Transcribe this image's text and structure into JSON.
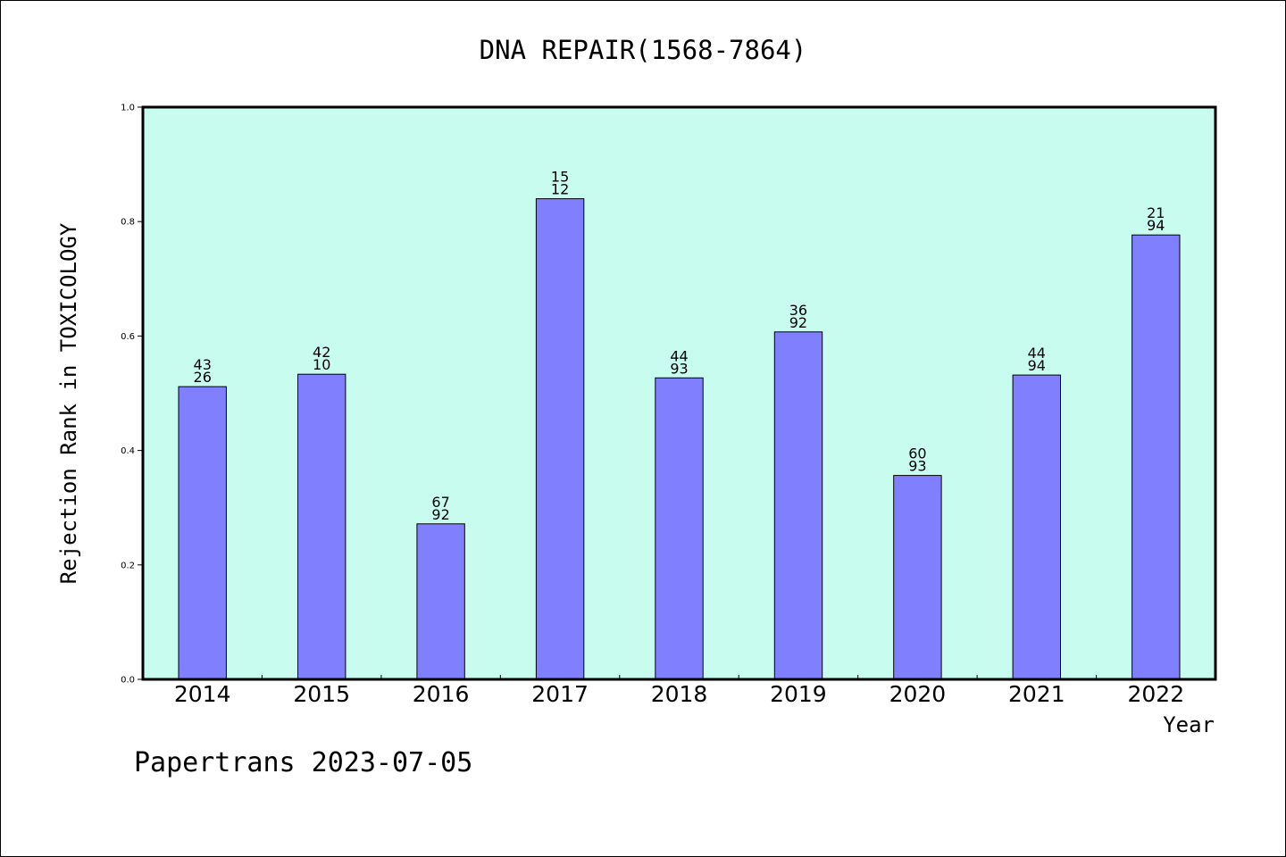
{
  "chart_data": {
    "type": "bar",
    "title": "DNA REPAIR(1568-7864)",
    "xlabel": "Year",
    "ylabel": "Rejection Rank in TOXICOLOGY",
    "categories": [
      "2014",
      "2015",
      "2016",
      "2017",
      "2018",
      "2019",
      "2020",
      "2021",
      "2022"
    ],
    "values": [
      0.5116,
      0.5333,
      0.2717,
      0.84,
      0.5269,
      0.6071,
      0.3563,
      0.5319,
      0.7766
    ],
    "bar_labels": [
      [
        "43",
        "26"
      ],
      [
        "42",
        "10"
      ],
      [
        "67",
        "92"
      ],
      [
        "15",
        "12"
      ],
      [
        "44",
        "93"
      ],
      [
        "36",
        "92"
      ],
      [
        "60",
        "93"
      ],
      [
        "44",
        "94"
      ],
      [
        "21",
        "94"
      ]
    ],
    "ylim": [
      0,
      1.0
    ],
    "yticks": [
      "0.0",
      "0.2",
      "0.4",
      "0.6",
      "0.8",
      "1.0"
    ],
    "grid": false,
    "colors": {
      "plot_background": "#c8fcee",
      "bar_fill": "#8080ff",
      "bar_edge": "#000000"
    }
  },
  "footer": {
    "text": "Papertrans 2023-07-05"
  }
}
